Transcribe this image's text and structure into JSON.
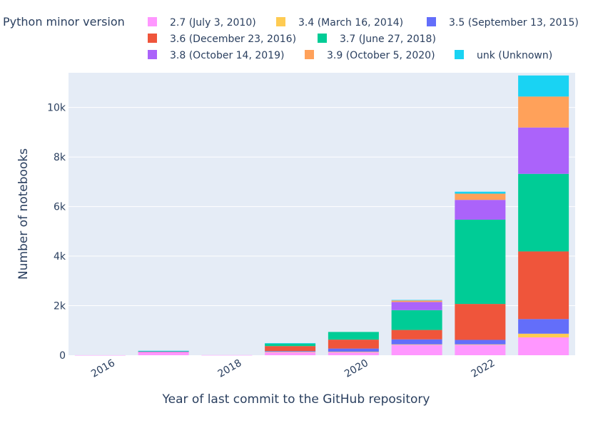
{
  "chart_data": {
    "type": "bar",
    "stacked": true,
    "title": "",
    "xlabel": "Year of last commit to the GitHub repository",
    "ylabel": "Number of notebooks",
    "legend_title": "Python minor version",
    "x": [
      2016,
      2017,
      2018,
      2019,
      2020,
      2021,
      2022,
      2023
    ],
    "xticks": [
      "2016",
      "2018",
      "2020",
      "2022"
    ],
    "xtick_values": [
      2016,
      2018,
      2020,
      2022
    ],
    "yticks": [
      "0",
      "2k",
      "4k",
      "6k",
      "8k",
      "10k"
    ],
    "ytick_values": [
      0,
      2000,
      4000,
      6000,
      8000,
      10000
    ],
    "ylim": [
      0,
      11400
    ],
    "xlim": [
      2015.5,
      2023.5
    ],
    "series": [
      {
        "name": "2.7 (July 3, 2010)",
        "color": "#FF97FF",
        "values": [
          2,
          140,
          5,
          120,
          120,
          420,
          420,
          720
        ]
      },
      {
        "name": "3.4 (March 16, 2014)",
        "color": "#FECB52",
        "values": [
          0,
          0,
          0,
          20,
          20,
          20,
          20,
          150
        ]
      },
      {
        "name": "3.5 (September 13, 2015)",
        "color": "#636EFA",
        "values": [
          0,
          5,
          0,
          30,
          130,
          200,
          180,
          590
        ]
      },
      {
        "name": "3.6 (December 23, 2016)",
        "color": "#EF553B",
        "values": [
          0,
          5,
          0,
          200,
          360,
          380,
          1450,
          2730
        ]
      },
      {
        "name": "3.7 (June 27, 2018)",
        "color": "#00CC96",
        "values": [
          0,
          10,
          0,
          100,
          310,
          800,
          3400,
          3130
        ]
      },
      {
        "name": "3.8 (October 14, 2019)",
        "color": "#AB63FA",
        "values": [
          0,
          0,
          0,
          0,
          0,
          330,
          800,
          1870
        ]
      },
      {
        "name": "3.9 (October 5, 2020)",
        "color": "#FFA15A",
        "values": [
          0,
          0,
          0,
          0,
          0,
          60,
          250,
          1250
        ]
      },
      {
        "name": "unk (Unknown)",
        "color": "#19D3F3",
        "values": [
          0,
          20,
          0,
          20,
          0,
          20,
          80,
          850
        ]
      }
    ]
  }
}
